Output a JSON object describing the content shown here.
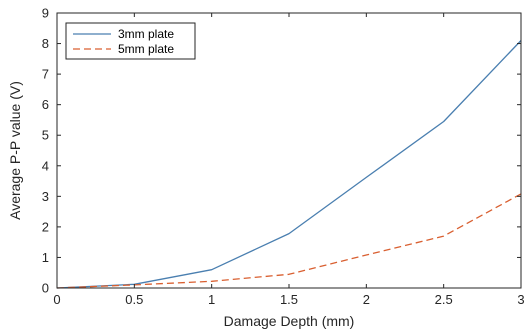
{
  "chart_data": {
    "type": "line",
    "title": "",
    "xlabel": "Damage Depth (mm)",
    "ylabel": "Average P-P value (V)",
    "xlim": [
      0,
      3
    ],
    "ylim": [
      0,
      9
    ],
    "x_ticks": [
      0,
      0.5,
      1,
      1.5,
      2,
      2.5,
      3
    ],
    "x_tick_labels": [
      "0",
      "0.5",
      "1",
      "1.5",
      "2",
      "2.5",
      "3"
    ],
    "y_ticks": [
      0,
      1,
      2,
      3,
      4,
      5,
      6,
      7,
      8,
      9
    ],
    "y_tick_labels": [
      "0",
      "1",
      "2",
      "3",
      "4",
      "5",
      "6",
      "7",
      "8",
      "9"
    ],
    "grid": false,
    "legend_position": "top-left",
    "series": [
      {
        "name": "3mm plate",
        "color": "#4a7fb0",
        "style": "solid",
        "x": [
          0,
          0.5,
          1,
          1.5,
          2,
          2.5,
          3
        ],
        "y": [
          0,
          0.12,
          0.6,
          1.78,
          3.62,
          5.45,
          8.1
        ]
      },
      {
        "name": "5mm plate",
        "color": "#d95f30",
        "style": "dashed",
        "x": [
          0,
          0.5,
          1,
          1.5,
          2,
          2.5,
          3
        ],
        "y": [
          0,
          0.1,
          0.22,
          0.45,
          1.08,
          1.7,
          3.08
        ]
      }
    ]
  }
}
